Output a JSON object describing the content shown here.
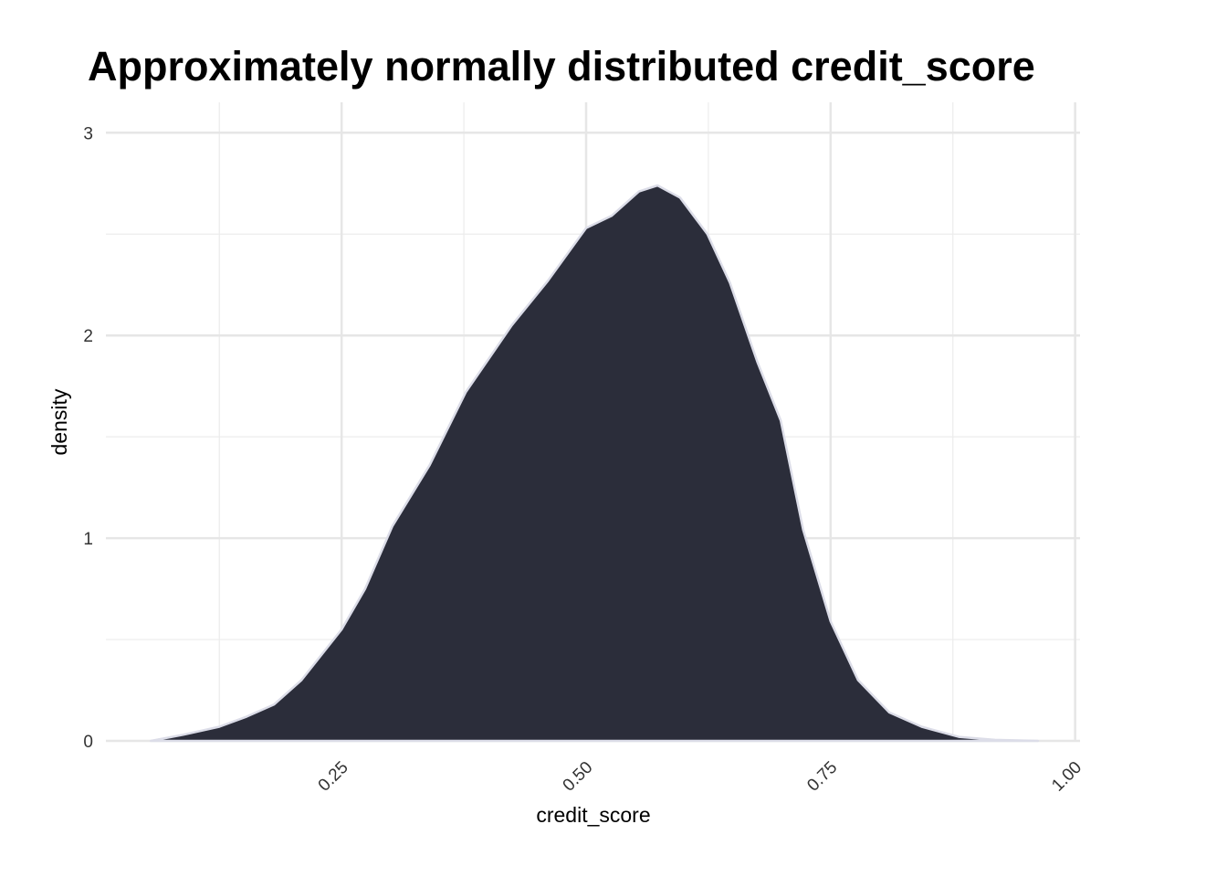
{
  "chart_data": {
    "type": "area",
    "title": "Approximately normally distributed credit_score",
    "x_label": "credit_score",
    "y_label": "density",
    "x": [
      0.055,
      0.088,
      0.125,
      0.153,
      0.181,
      0.209,
      0.25,
      0.274,
      0.302,
      0.34,
      0.377,
      0.424,
      0.461,
      0.5,
      0.526,
      0.554,
      0.573,
      0.596,
      0.624,
      0.647,
      0.675,
      0.699,
      0.722,
      0.75,
      0.778,
      0.81,
      0.843,
      0.881,
      0.918,
      0.962
    ],
    "values": [
      0,
      0.03,
      0.07,
      0.12,
      0.18,
      0.3,
      0.55,
      0.75,
      1.06,
      1.36,
      1.72,
      2.05,
      2.27,
      2.53,
      2.59,
      2.71,
      2.74,
      2.68,
      2.5,
      2.26,
      1.87,
      1.58,
      1.04,
      0.59,
      0.3,
      0.14,
      0.07,
      0.02,
      0.005,
      0
    ],
    "color": "#2b2d3a",
    "line_color": "#dcdde8",
    "xlim": [
      0.009,
      1.005
    ],
    "ylim": [
      0,
      3.15
    ],
    "xticks": [
      0.25,
      {
        "value": 0.5,
        "label": "0.50"
      },
      0.75,
      {
        "value": 1,
        "label": "1.00"
      }
    ],
    "yticks": [
      0,
      1,
      2,
      3
    ],
    "x_minor_ticks": [
      0.125,
      0.375,
      0.625,
      0.875
    ],
    "y_minor_ticks": [
      0.5,
      1.5,
      2.5
    ],
    "grid": true
  }
}
